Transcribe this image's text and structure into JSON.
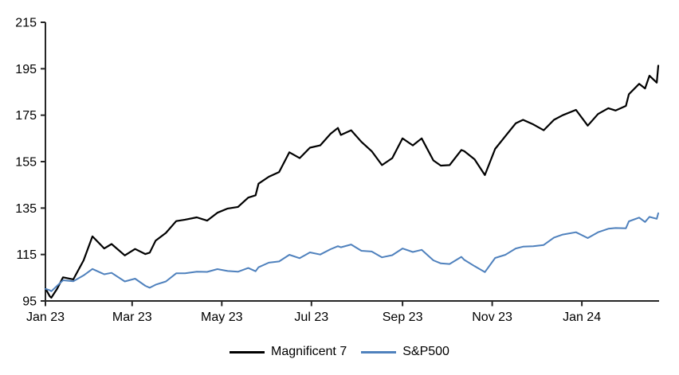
{
  "chart_data": {
    "type": "line",
    "grid": false,
    "legend_position": "bottom-center",
    "axis_color": "#262626",
    "text_color": "#000000",
    "y_axis": {
      "min": 95,
      "max": 215,
      "ticks": [
        95,
        115,
        135,
        155,
        175,
        195,
        215
      ]
    },
    "x_axis": {
      "ticks": [
        {
          "date": "2023-01-01",
          "label": "Jan 23"
        },
        {
          "date": "2023-03-01",
          "label": "Mar 23"
        },
        {
          "date": "2023-05-01",
          "label": "May 23"
        },
        {
          "date": "2023-07-01",
          "label": "Jul 23"
        },
        {
          "date": "2023-09-01",
          "label": "Sep 23"
        },
        {
          "date": "2023-11-01",
          "label": "Nov 23"
        },
        {
          "date": "2024-01-01",
          "label": "Jan 24"
        }
      ]
    },
    "series": [
      {
        "name": "Magnificent 7",
        "color": "#000000",
        "stroke_width": 2.2
      },
      {
        "name": "S&P500",
        "color": "#4F81BD",
        "stroke_width": 2
      }
    ],
    "columns": [
      "date",
      "Magnificent 7",
      "S&P500"
    ],
    "rows": [
      [
        "2023-01-01",
        100.4,
        100.2
      ],
      [
        "2023-01-04",
        97.0,
        99.6
      ],
      [
        "2023-01-05",
        96.4,
        99.2
      ],
      [
        "2023-01-09",
        100.3,
        101.6
      ],
      [
        "2023-01-13",
        105.2,
        103.9
      ],
      [
        "2023-01-20",
        104.3,
        103.5
      ],
      [
        "2023-01-27",
        112.5,
        106.0
      ],
      [
        "2023-02-02",
        122.8,
        108.8
      ],
      [
        "2023-02-10",
        117.6,
        106.5
      ],
      [
        "2023-02-15",
        119.5,
        107.1
      ],
      [
        "2023-02-24",
        114.6,
        103.4
      ],
      [
        "2023-03-03",
        117.4,
        104.6
      ],
      [
        "2023-03-10",
        115.2,
        101.5
      ],
      [
        "2023-03-13",
        115.8,
        100.7
      ],
      [
        "2023-03-17",
        121.0,
        102.0
      ],
      [
        "2023-03-24",
        124.3,
        103.4
      ],
      [
        "2023-03-31",
        129.4,
        106.9
      ],
      [
        "2023-04-06",
        130.0,
        106.9
      ],
      [
        "2023-04-14",
        131.0,
        107.6
      ],
      [
        "2023-04-21",
        129.6,
        107.5
      ],
      [
        "2023-04-28",
        133.0,
        108.7
      ],
      [
        "2023-05-05",
        134.8,
        107.9
      ],
      [
        "2023-05-12",
        135.5,
        107.6
      ],
      [
        "2023-05-19",
        139.5,
        109.2
      ],
      [
        "2023-05-24",
        140.5,
        107.8
      ],
      [
        "2023-05-26",
        145.5,
        109.5
      ],
      [
        "2023-06-02",
        148.5,
        111.5
      ],
      [
        "2023-06-09",
        150.5,
        112.0
      ],
      [
        "2023-06-16",
        159.0,
        114.9
      ],
      [
        "2023-06-23",
        156.5,
        113.4
      ],
      [
        "2023-06-30",
        161.0,
        115.9
      ],
      [
        "2023-07-07",
        162.0,
        115.0
      ],
      [
        "2023-07-14",
        167.0,
        117.3
      ],
      [
        "2023-07-19",
        169.5,
        118.6
      ],
      [
        "2023-07-21",
        166.5,
        118.1
      ],
      [
        "2023-07-28",
        168.5,
        119.3
      ],
      [
        "2023-08-04",
        163.5,
        116.6
      ],
      [
        "2023-08-11",
        159.5,
        116.3
      ],
      [
        "2023-08-18",
        153.5,
        113.8
      ],
      [
        "2023-08-25",
        156.5,
        114.7
      ],
      [
        "2023-09-01",
        165.0,
        117.6
      ],
      [
        "2023-09-08",
        162.0,
        116.1
      ],
      [
        "2023-09-14",
        165.0,
        117.0
      ],
      [
        "2023-09-22",
        155.5,
        112.5
      ],
      [
        "2023-09-27",
        153.3,
        111.2
      ],
      [
        "2023-10-03",
        153.5,
        110.9
      ],
      [
        "2023-10-11",
        160.0,
        114.0
      ],
      [
        "2023-10-13",
        159.5,
        112.7
      ],
      [
        "2023-10-20",
        156.0,
        110.0
      ],
      [
        "2023-10-27",
        149.2,
        107.4
      ],
      [
        "2023-11-03",
        160.5,
        113.5
      ],
      [
        "2023-11-10",
        166.0,
        114.9
      ],
      [
        "2023-11-17",
        171.5,
        117.6
      ],
      [
        "2023-11-22",
        173.0,
        118.4
      ],
      [
        "2023-11-29",
        171.0,
        118.6
      ],
      [
        "2023-12-06",
        168.5,
        119.1
      ],
      [
        "2023-12-13",
        173.0,
        122.3
      ],
      [
        "2023-12-19",
        175.0,
        123.6
      ],
      [
        "2023-12-28",
        177.3,
        124.6
      ],
      [
        "2024-01-05",
        170.5,
        122.1
      ],
      [
        "2024-01-12",
        175.5,
        124.6
      ],
      [
        "2024-01-19",
        178.0,
        126.1
      ],
      [
        "2024-01-24",
        177.0,
        126.4
      ],
      [
        "2024-01-31",
        179.0,
        126.3
      ],
      [
        "2024-02-02",
        184.0,
        129.3
      ],
      [
        "2024-02-09",
        188.5,
        130.9
      ],
      [
        "2024-02-13",
        186.5,
        129.0
      ],
      [
        "2024-02-16",
        192.0,
        131.2
      ],
      [
        "2024-02-21",
        189.0,
        130.4
      ],
      [
        "2024-02-22",
        196.3,
        132.8
      ]
    ]
  },
  "legend": {
    "items": [
      {
        "label": "Magnificent 7",
        "color": "#000000"
      },
      {
        "label": "S&P500",
        "color": "#4F81BD"
      }
    ]
  }
}
